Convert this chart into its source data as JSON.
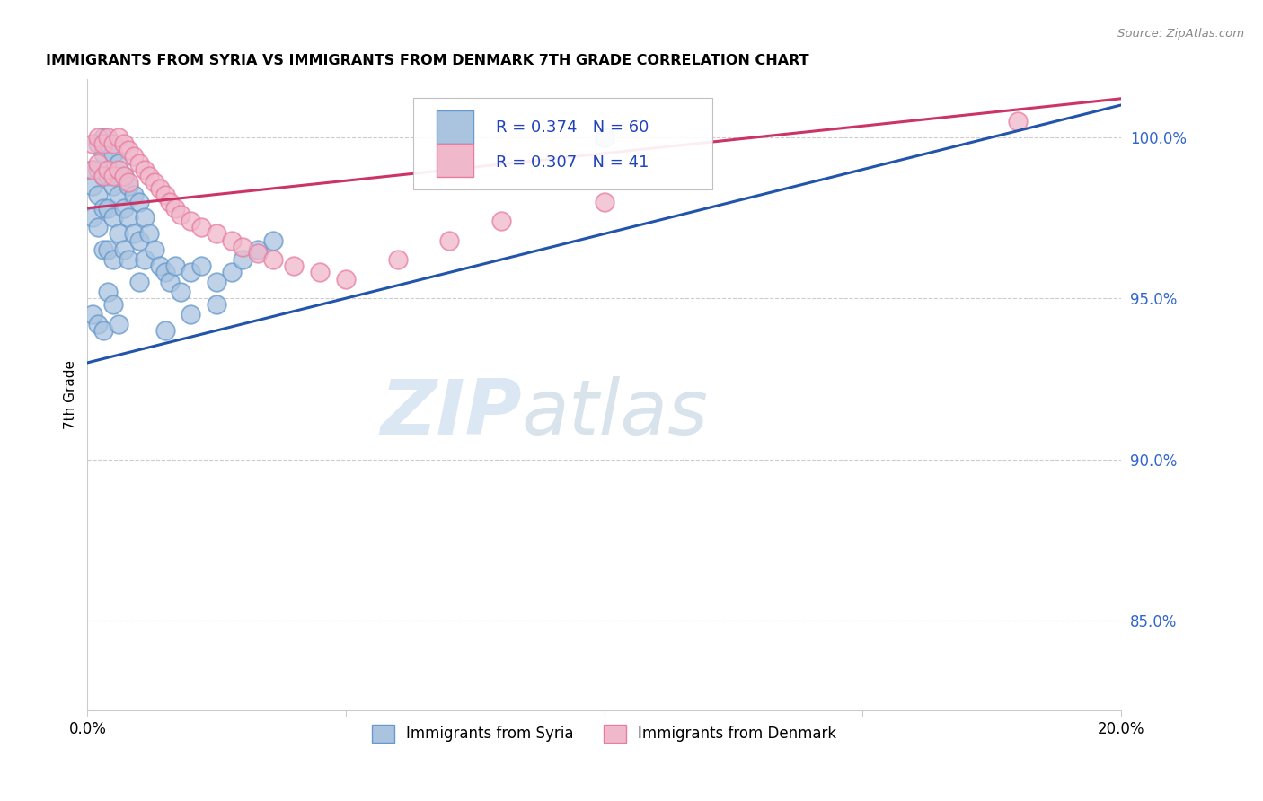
{
  "title": "IMMIGRANTS FROM SYRIA VS IMMIGRANTS FROM DENMARK 7TH GRADE CORRELATION CHART",
  "source": "Source: ZipAtlas.com",
  "ylabel": "7th Grade",
  "ylabel_right_ticks": [
    "100.0%",
    "95.0%",
    "90.0%",
    "85.0%"
  ],
  "ylabel_right_values": [
    1.0,
    0.95,
    0.9,
    0.85
  ],
  "xmin": 0.0,
  "xmax": 0.2,
  "ymin": 0.822,
  "ymax": 1.018,
  "syria_color": "#6699cc",
  "syria_color_fill": "#aac4e0",
  "denmark_color": "#e87da0",
  "denmark_color_fill": "#f0b8cb",
  "syria_R": 0.374,
  "syria_N": 60,
  "denmark_R": 0.307,
  "denmark_N": 41,
  "syria_line_color": "#2255aa",
  "denmark_line_color": "#cc3366",
  "legend_R_color": "#2244bb",
  "watermark_zip_color": "#c8d8ee",
  "watermark_atlas_color": "#b0c8e8",
  "grid_color": "#cccccc",
  "right_tick_color": "#3366cc"
}
